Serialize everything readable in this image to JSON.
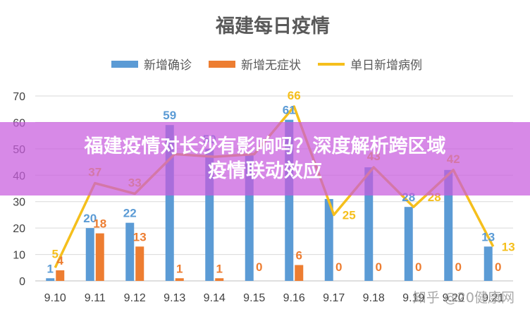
{
  "chart_data": {
    "type": "bar",
    "title": "福建每日疫情",
    "categories": [
      "9.10",
      "9.11",
      "9.12",
      "9.13",
      "9.14",
      "9.15",
      "9.16",
      "9.17",
      "9.18",
      "9.19",
      "9.20",
      "9.21"
    ],
    "yticks": [
      "0",
      "10",
      "20",
      "30",
      "40",
      "50",
      "60",
      "70"
    ],
    "ylim": [
      0,
      70
    ],
    "grid": true,
    "legend_position": "top",
    "series": [
      {
        "name": "新增确诊",
        "type": "bar",
        "color": "#5b9bd5",
        "values": [
          1,
          20,
          22,
          59,
          50,
          48,
          61,
          31,
          43,
          28,
          42,
          13
        ],
        "labels": [
          "1",
          "20",
          "22",
          "59",
          "50",
          "",
          "61",
          "",
          "",
          "28",
          "",
          "13"
        ]
      },
      {
        "name": "新增无症状",
        "type": "bar",
        "color": "#ed7d31",
        "values": [
          4,
          18,
          13,
          1,
          1,
          0,
          6,
          0,
          0,
          0,
          0,
          0
        ],
        "labels": [
          "4",
          "18",
          "13",
          "1",
          "1",
          "0",
          "6",
          "0",
          "0",
          "0",
          "0",
          "0"
        ]
      },
      {
        "name": "单日新增病例",
        "type": "line",
        "color": "#f5bf1c",
        "values": [
          5,
          37,
          33,
          48,
          47,
          48,
          66,
          25,
          43,
          28,
          42,
          13
        ],
        "labels": [
          "5",
          "37",
          "33",
          "",
          "",
          "",
          "66",
          "25",
          "43",
          "28",
          "42",
          "13"
        ]
      }
    ]
  },
  "overlay": {
    "line1": "福建疫情对长沙有影响吗？深度解析跨区域",
    "line2": "疫情联动效应",
    "color": "#c75cde"
  },
  "watermark": "知乎 @20健康网"
}
